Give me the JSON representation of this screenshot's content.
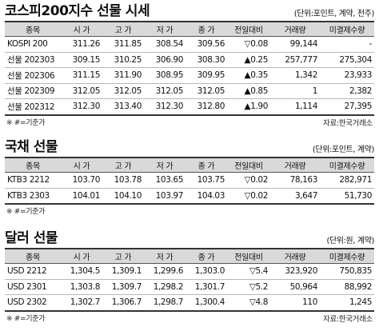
{
  "kospi": {
    "title": "코스피200지수 선물 시세",
    "unit": "(단위:포인트, 계약, 천주)",
    "headers": [
      "종목",
      "시 가",
      "고 가",
      "저 가",
      "종 가",
      "전일대비",
      "거래량",
      "미결제수량"
    ],
    "rows": [
      [
        "KOSPI 200",
        "311.26",
        "311.85",
        "308.54",
        "309.56",
        "▽0.08",
        "99,144",
        "-"
      ],
      [
        "선물 202303",
        "309.15",
        "310.25",
        "306.90",
        "308.30",
        "▲0.25",
        "257,777",
        "275,304"
      ],
      [
        "선물 202306",
        "311.15",
        "311.90",
        "308.95",
        "309.95",
        "▲0.35",
        "1,342",
        "23,933"
      ],
      [
        "선물 202309",
        "312.05",
        "312.05",
        "312.05",
        "312.05",
        "▲0.85",
        "1",
        "2,382"
      ],
      [
        "선물 202312",
        "312.30",
        "313.40",
        "312.30",
        "312.80",
        "▲1.90",
        "1,114",
        "27,395"
      ]
    ],
    "note": "※ #=기준가",
    "source": "자료:한국거래소"
  },
  "bond": {
    "title": "국채 선물",
    "unit": "(단위:포인트, 계약)",
    "headers": [
      "종목",
      "시 가",
      "고 가",
      "저 가",
      "종 가",
      "전일대비",
      "거래량",
      "미결제수량"
    ],
    "rows": [
      [
        "KTB3 2212",
        "103.70",
        "103.78",
        "103.65",
        "103.75",
        "▽0.02",
        "78,163",
        "282,971"
      ],
      [
        "KTB3 2303",
        "104.01",
        "104.10",
        "103.97",
        "104.03",
        "▽0.02",
        "3,647",
        "51,730"
      ]
    ],
    "note": "※ #=기준가"
  },
  "dollar": {
    "title": "달러 선물",
    "unit": "(단위:원, 계약)",
    "headers": [
      "종목",
      "시 가",
      "고 가",
      "저 가",
      "종 가",
      "전일대비",
      "거래량",
      "미결제수량"
    ],
    "rows": [
      [
        "USD 2212",
        "1,304.5",
        "1,309.1",
        "1,299.6",
        "1,303.0",
        "▽5.4",
        "323,920",
        "750,835"
      ],
      [
        "USD 2301",
        "1,303.8",
        "1,309.7",
        "1,298.2",
        "1,301.7",
        "▽5.2",
        "50,964",
        "88,992"
      ],
      [
        "USD 2302",
        "1,302.7",
        "1,306.7",
        "1,298.7",
        "1,300.4",
        "▽4.8",
        "110",
        "1,245"
      ]
    ],
    "note": "※ #=기준가",
    "source": "자료:한국거래소"
  }
}
